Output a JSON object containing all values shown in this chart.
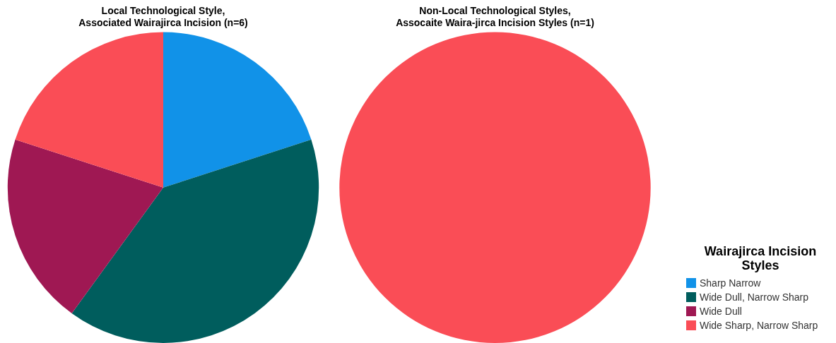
{
  "chart_data": [
    {
      "type": "pie",
      "title": "Local Technological Style,\nAssociated Wairajirca Incision (n=6)",
      "categories": [
        null,
        null,
        null,
        null
      ],
      "values": [
        20,
        40,
        20,
        20
      ],
      "colors": [
        "#1192e8",
        "#005d5d",
        "#9f1853",
        "#fa4d56"
      ],
      "legend": false
    },
    {
      "type": "pie",
      "title": "Non-Local Technological Styles,\nAssocaite Waira-jirca Incision Styles (n=1)",
      "categories": [
        "Sharp Narrow",
        "Wide Dull, Narrow Sharp",
        "Wide Dull",
        "Wide Sharp, Narrow Sharp"
      ],
      "values": [
        0,
        0,
        0,
        100
      ],
      "colors": [
        "#1192e8",
        "#005d5d",
        "#9f1853",
        "#fa4d56"
      ],
      "legend": "bottom right",
      "legend_title": "Wairajirca Incision Styles"
    }
  ]
}
